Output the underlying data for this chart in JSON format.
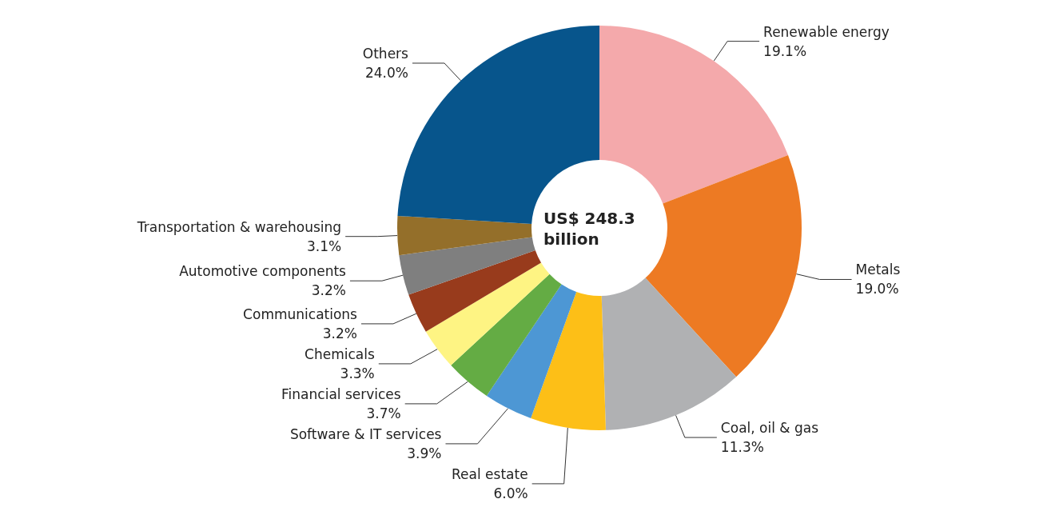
{
  "chart_data": {
    "type": "donut",
    "categories": [
      "Renewable energy",
      "Metals",
      "Coal, oil & gas",
      "Real estate",
      "Software & IT services",
      "Financial services",
      "Chemicals",
      "Communications",
      "Automotive components",
      "Transportation & warehousing",
      "Others"
    ],
    "values": [
      19.1,
      19.0,
      11.3,
      6.0,
      3.9,
      3.7,
      3.3,
      3.2,
      3.2,
      3.1,
      24.0
    ],
    "value_labels": [
      "19.1%",
      "19.0%",
      "11.3%",
      "6.0%",
      "3.9%",
      "3.7%",
      "3.3%",
      "3.2%",
      "3.2%",
      "3.1%",
      "24.0%"
    ],
    "colors": [
      "#f4a9ab",
      "#ed7a23",
      "#b0b1b3",
      "#fdbf17",
      "#4d97d4",
      "#64ac44",
      "#fef483",
      "#983b1c",
      "#7f7f7f",
      "#946f2a",
      "#07558c"
    ],
    "annotations": [
      "US$ 248.3 billion"
    ],
    "legend": false
  }
}
